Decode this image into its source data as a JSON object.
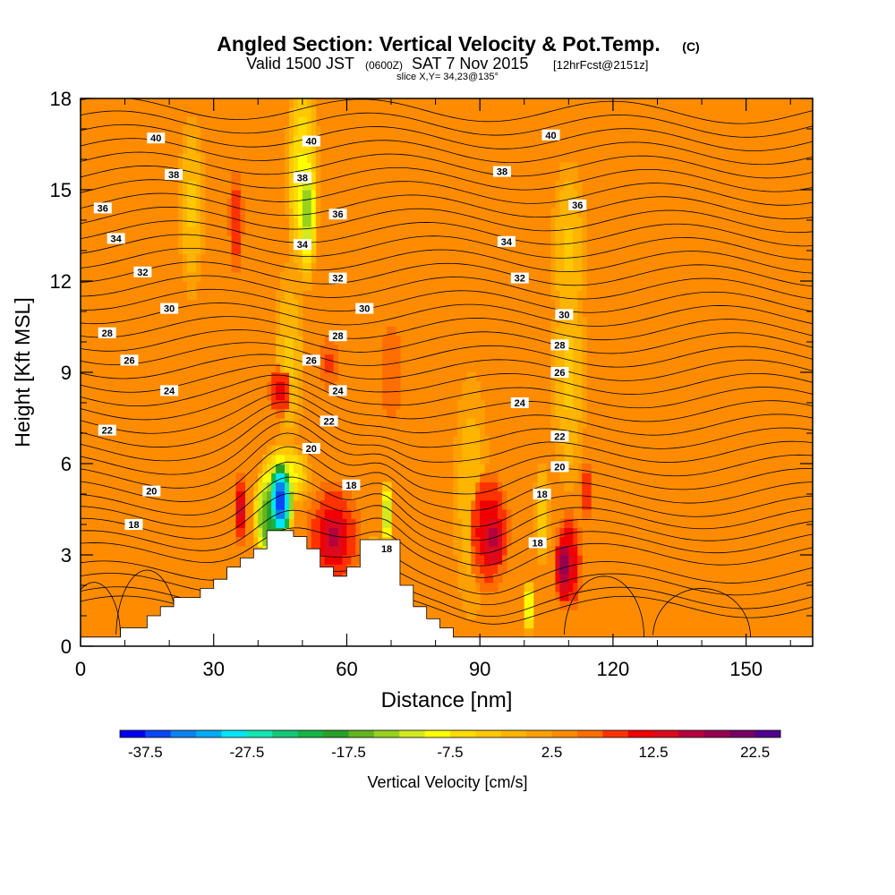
{
  "chart_data": {
    "type": "heatmap",
    "title": "Angled Section: Vertical Velocity & Pot.Temp.",
    "title_suffix": "(C)",
    "subtitle": {
      "valid": "Valid 1500 JST",
      "utc": "(0600Z)",
      "date": "SAT 7 Nov 2015",
      "forecast": "[12hrFcst@2151z]"
    },
    "slice": "slice X,Y= 34,23@135°",
    "xlabel": "Distance [nm]",
    "ylabel": "Height [Kft MSL]",
    "xlim": [
      0,
      165
    ],
    "ylim": [
      0,
      18
    ],
    "x_ticks": [
      0,
      30,
      60,
      90,
      120,
      150
    ],
    "y_ticks": [
      0,
      3,
      6,
      9,
      12,
      15,
      18
    ],
    "x_tick_labels": [
      "0",
      "30",
      "60",
      "90",
      "120",
      "150"
    ],
    "y_tick_labels": [
      "0",
      "3",
      "6",
      "9",
      "12",
      "15",
      "18"
    ],
    "colorbar": {
      "label": "Vertical Velocity [cm/s]",
      "min": -40,
      "max": 25,
      "step": 2.5,
      "tick_values": [
        -37.5,
        -27.5,
        -17.5,
        -7.5,
        2.5,
        12.5,
        22.5
      ],
      "tick_labels": [
        "-37.5",
        "-27.5",
        "-17.5",
        "-7.5",
        "2.5",
        "12.5",
        "22.5"
      ],
      "colors": [
        "#0000f0",
        "#0a46f5",
        "#0a82f0",
        "#00aaf5",
        "#00e6f5",
        "#14e6b4",
        "#14c878",
        "#14b446",
        "#28a028",
        "#64b41e",
        "#96d21e",
        "#d2eb1e",
        "#ffff00",
        "#ffdc00",
        "#ffc800",
        "#ffb400",
        "#ffa000",
        "#ff8c00",
        "#ff6e00",
        "#ff3200",
        "#f00000",
        "#dc0a1e",
        "#b4003c",
        "#960050",
        "#780064",
        "#50008c"
      ]
    },
    "background_value": 2.5,
    "velocity_cells": [
      {
        "x": 45,
        "z": 4.8,
        "rx": 3.2,
        "rz": 1.6,
        "v": -38
      },
      {
        "x": 43,
        "z": 4.3,
        "rx": 4.5,
        "rz": 1.9,
        "v": -20
      },
      {
        "x": 46,
        "z": 5.6,
        "rx": 6,
        "rz": 1.2,
        "v": -10
      },
      {
        "x": 36,
        "z": 4.5,
        "rx": 1.5,
        "rz": 1.5,
        "v": 14
      },
      {
        "x": 51,
        "z": 14.4,
        "rx": 2.6,
        "rz": 2.6,
        "v": -14
      },
      {
        "x": 50,
        "z": 15.5,
        "rx": 3.8,
        "rz": 3.8,
        "v": -8
      },
      {
        "x": 47,
        "z": 9.5,
        "rx": 3.5,
        "rz": 3,
        "v": -3
      },
      {
        "x": 57,
        "z": 3.6,
        "rx": 5,
        "rz": 1.3,
        "v": 16
      },
      {
        "x": 57,
        "z": 3.6,
        "rx": 7,
        "rz": 2.2,
        "v": 12
      },
      {
        "x": 45,
        "z": 8.4,
        "rx": 3,
        "rz": 1,
        "v": 12
      },
      {
        "x": 56,
        "z": 9.3,
        "rx": 2.8,
        "rz": 1,
        "v": 9
      },
      {
        "x": 69,
        "z": 4.3,
        "rx": 1.4,
        "rz": 1.3,
        "v": -14
      },
      {
        "x": 66,
        "z": 3,
        "rx": 1,
        "rz": 0.7,
        "v": -9
      },
      {
        "x": 93,
        "z": 3.5,
        "rx": 3.5,
        "rz": 1.4,
        "v": 16
      },
      {
        "x": 92,
        "z": 3.8,
        "rx": 5.5,
        "rz": 2.4,
        "v": 12
      },
      {
        "x": 109,
        "z": 2.6,
        "rx": 2.5,
        "rz": 1.4,
        "v": 19
      },
      {
        "x": 110,
        "z": 2.8,
        "rx": 3.5,
        "rz": 2,
        "v": 13
      },
      {
        "x": 114,
        "z": 5,
        "rx": 1.4,
        "rz": 1.2,
        "v": 11
      },
      {
        "x": 101,
        "z": 1.3,
        "rx": 1.5,
        "rz": 1,
        "v": -11
      },
      {
        "x": 104,
        "z": 4.4,
        "rx": 1.8,
        "rz": 1.8,
        "v": -4
      },
      {
        "x": 88,
        "z": 5,
        "rx": 4,
        "rz": 4,
        "v": -2
      },
      {
        "x": 35,
        "z": 14,
        "rx": 2,
        "rz": 2,
        "v": 10
      },
      {
        "x": 25,
        "z": 14.5,
        "rx": 3,
        "rz": 3,
        "v": -3
      },
      {
        "x": 110,
        "z": 13,
        "rx": 4,
        "rz": 3,
        "v": -3
      },
      {
        "x": 110,
        "z": 9,
        "rx": 4,
        "rz": 4,
        "v": -3
      },
      {
        "x": 70,
        "z": 9,
        "rx": 4,
        "rz": 3,
        "v": 6
      },
      {
        "x": 15,
        "z": 9.5,
        "rx": 4,
        "rz": 3,
        "v": 5
      },
      {
        "x": 140,
        "z": 5,
        "rx": 10,
        "rz": 5,
        "v": 4
      },
      {
        "x": 7,
        "z": 2,
        "rx": 6,
        "rz": 2.5,
        "v": 5
      }
    ],
    "terrain": {
      "x": [
        0,
        9,
        9,
        15,
        15,
        18,
        18,
        21,
        21,
        27,
        27,
        30,
        30,
        33,
        33,
        36,
        36,
        39,
        39,
        42,
        42,
        48,
        48,
        51,
        51,
        54,
        54,
        57,
        57,
        60,
        60,
        63,
        63,
        66,
        66,
        72,
        72,
        75,
        75,
        78,
        78,
        81,
        81,
        84,
        84,
        165
      ],
      "z": [
        0.3,
        0.3,
        0.6,
        0.6,
        1.0,
        1.0,
        1.3,
        1.3,
        1.6,
        1.6,
        1.9,
        1.9,
        2.2,
        2.2,
        2.6,
        2.6,
        2.9,
        2.9,
        3.2,
        3.2,
        3.8,
        3.8,
        3.6,
        3.6,
        3.2,
        3.2,
        2.6,
        2.6,
        2.3,
        2.3,
        2.6,
        2.6,
        3.5,
        3.5,
        3.5,
        3.5,
        2.0,
        2.0,
        1.3,
        1.3,
        0.9,
        0.9,
        0.6,
        0.6,
        0.3,
        0.3
      ]
    },
    "pot_temp_base_heights": [
      1.3,
      1.6,
      2.05,
      2.45,
      3.05,
      3.45,
      3.85,
      4.25,
      4.65,
      5.1,
      5.55,
      6.0,
      6.45,
      6.9,
      7.35,
      7.8,
      8.25,
      8.7,
      9.15,
      9.6,
      10.05,
      10.5,
      10.95,
      11.4,
      11.85,
      12.3,
      12.75,
      13.2,
      13.65,
      14.1,
      14.55,
      15.0,
      15.45,
      15.9,
      16.35,
      16.8,
      17.25,
      17.7
    ],
    "pot_temp_labels": [
      {
        "text": "40",
        "x": 17,
        "z": 16.7
      },
      {
        "text": "40",
        "x": 52,
        "z": 16.6
      },
      {
        "text": "40",
        "x": 106,
        "z": 16.8
      },
      {
        "text": "38",
        "x": 21,
        "z": 15.5
      },
      {
        "text": "38",
        "x": 50,
        "z": 15.4
      },
      {
        "text": "38",
        "x": 95,
        "z": 15.6
      },
      {
        "text": "36",
        "x": 5,
        "z": 14.4
      },
      {
        "text": "36",
        "x": 58,
        "z": 14.2
      },
      {
        "text": "36",
        "x": 112,
        "z": 14.5
      },
      {
        "text": "34",
        "x": 8,
        "z": 13.4
      },
      {
        "text": "34",
        "x": 50,
        "z": 13.2
      },
      {
        "text": "34",
        "x": 96,
        "z": 13.3
      },
      {
        "text": "32",
        "x": 14,
        "z": 12.3
      },
      {
        "text": "32",
        "x": 58,
        "z": 12.1
      },
      {
        "text": "32",
        "x": 99,
        "z": 12.1
      },
      {
        "text": "30",
        "x": 20,
        "z": 11.1
      },
      {
        "text": "30",
        "x": 64,
        "z": 11.1
      },
      {
        "text": "30",
        "x": 109,
        "z": 10.9
      },
      {
        "text": "28",
        "x": 6,
        "z": 10.3
      },
      {
        "text": "28",
        "x": 58,
        "z": 10.2
      },
      {
        "text": "28",
        "x": 108,
        "z": 9.9
      },
      {
        "text": "26",
        "x": 11,
        "z": 9.4
      },
      {
        "text": "26",
        "x": 52,
        "z": 9.4
      },
      {
        "text": "26",
        "x": 108,
        "z": 9.0
      },
      {
        "text": "24",
        "x": 20,
        "z": 8.4
      },
      {
        "text": "24",
        "x": 58,
        "z": 8.4
      },
      {
        "text": "24",
        "x": 99,
        "z": 8.0
      },
      {
        "text": "22",
        "x": 6,
        "z": 7.1
      },
      {
        "text": "22",
        "x": 56,
        "z": 7.4
      },
      {
        "text": "22",
        "x": 108,
        "z": 6.9
      },
      {
        "text": "20",
        "x": 16,
        "z": 5.1
      },
      {
        "text": "20",
        "x": 52,
        "z": 6.5
      },
      {
        "text": "20",
        "x": 108,
        "z": 5.9
      },
      {
        "text": "18",
        "x": 12,
        "z": 4.0
      },
      {
        "text": "18",
        "x": 61,
        "z": 5.3
      },
      {
        "text": "18",
        "x": 104,
        "z": 5.0
      },
      {
        "text": "18",
        "x": 69,
        "z": 3.2
      },
      {
        "text": "18",
        "x": 103,
        "z": 3.4
      }
    ]
  }
}
